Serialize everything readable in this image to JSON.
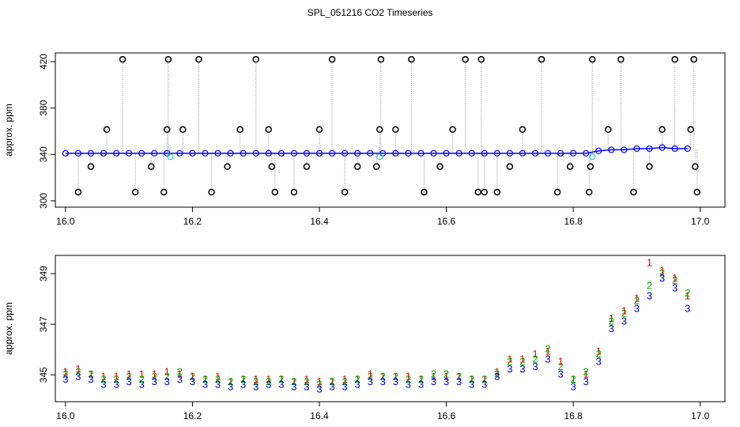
{
  "title": "SPL_051216  CO2 Timeseries",
  "chart_data": [
    {
      "type": "line",
      "ylabel": "approx. ppm",
      "xlim": [
        15.984,
        17.039
      ],
      "ylim": [
        294.5,
        427.5
      ],
      "xticks": [
        {
          "value": 16,
          "label": "16.0"
        },
        {
          "value": 16.2,
          "label": "16.2"
        },
        {
          "value": 16.4,
          "label": "16.4"
        },
        {
          "value": 16.6,
          "label": "16.6"
        },
        {
          "value": 16.8,
          "label": "16.8"
        },
        {
          "value": 17,
          "label": "17.0"
        }
      ],
      "yticks": [
        300,
        340,
        380,
        420
      ],
      "series": [
        {
          "kind": "main",
          "color": "#0000ff",
          "x": [
            16.0,
            16.02,
            16.04,
            16.06,
            16.08,
            16.1,
            16.12,
            16.14,
            16.16,
            16.18,
            16.2,
            16.22,
            16.24,
            16.26,
            16.28,
            16.3,
            16.32,
            16.34,
            16.36,
            16.38,
            16.4,
            16.42,
            16.44,
            16.46,
            16.48,
            16.5,
            16.52,
            16.54,
            16.56,
            16.58,
            16.6,
            16.62,
            16.64,
            16.66,
            16.68,
            16.7,
            16.72,
            16.74,
            16.76,
            16.78,
            16.8,
            16.82,
            16.84,
            16.86,
            16.88,
            16.9,
            16.92,
            16.94,
            16.96,
            16.98
          ],
          "values": [
            341,
            341,
            341,
            341,
            341,
            341,
            341,
            341,
            341,
            341,
            341,
            341,
            341,
            341,
            341,
            341,
            341,
            341,
            341,
            341,
            341,
            341,
            341,
            341,
            341,
            341,
            341,
            341,
            341,
            341,
            341,
            341,
            341,
            341,
            341,
            341,
            341,
            341,
            341,
            341,
            341,
            341,
            343,
            344,
            344,
            345,
            345,
            346,
            345,
            345
          ]
        },
        {
          "kind": "outlier",
          "color": "#000000",
          "x": [
            16.02,
            16.04,
            16.065,
            16.09,
            16.11,
            16.135,
            16.155,
            16.16,
            16.162,
            16.185,
            16.21,
            16.23,
            16.255,
            16.275,
            16.3,
            16.32,
            16.325,
            16.33,
            16.36,
            16.38,
            16.4,
            16.42,
            16.44,
            16.46,
            16.49,
            16.495,
            16.497,
            16.52,
            16.545,
            16.565,
            16.59,
            16.61,
            16.63,
            16.65,
            16.655,
            16.66,
            16.68,
            16.7,
            16.72,
            16.75,
            16.775,
            16.795,
            16.825,
            16.827,
            16.83,
            16.855,
            16.875,
            16.895,
            16.92,
            16.94,
            16.96,
            16.985,
            16.99,
            16.992,
            16.995
          ],
          "values": [
            307.5,
            329.5,
            361.5,
            422,
            307.5,
            329.5,
            307.5,
            361.5,
            422,
            361.5,
            422,
            307.5,
            329.5,
            361.5,
            422,
            361.5,
            329.5,
            307.5,
            307.5,
            329.5,
            361.5,
            422,
            307.5,
            329.5,
            329.5,
            361.5,
            422,
            361.5,
            422,
            307.5,
            329.5,
            361.5,
            422,
            307.5,
            422,
            307.5,
            307.5,
            329.5,
            361.5,
            422,
            307.5,
            329.5,
            307.5,
            329.5,
            422,
            361.5,
            422,
            307.5,
            329.5,
            361.5,
            422,
            361.5,
            422,
            329.5,
            307.5
          ]
        },
        {
          "kind": "flag",
          "color": "#33cccc",
          "x": [
            16.165,
            16.495,
            16.83
          ],
          "values": [
            338,
            338,
            338
          ]
        }
      ]
    },
    {
      "type": "scatter",
      "ylabel": "approx. ppm",
      "xlim": [
        15.984,
        17.039
      ],
      "ylim": [
        343.94,
        349.72
      ],
      "xticks": [
        {
          "value": 16,
          "label": "16.0"
        },
        {
          "value": 16.2,
          "label": "16.2"
        },
        {
          "value": 16.4,
          "label": "16.4"
        },
        {
          "value": 16.6,
          "label": "16.6"
        },
        {
          "value": 16.8,
          "label": "16.8"
        },
        {
          "value": 17,
          "label": "17.0"
        }
      ],
      "yticks": [
        345,
        347,
        349
      ],
      "x": [
        16.0,
        16.02,
        16.04,
        16.06,
        16.08,
        16.1,
        16.12,
        16.14,
        16.16,
        16.18,
        16.2,
        16.22,
        16.24,
        16.26,
        16.28,
        16.3,
        16.32,
        16.34,
        16.36,
        16.38,
        16.4,
        16.42,
        16.44,
        16.46,
        16.48,
        16.5,
        16.52,
        16.54,
        16.56,
        16.58,
        16.6,
        16.62,
        16.64,
        16.66,
        16.68,
        16.7,
        16.72,
        16.74,
        16.76,
        16.78,
        16.8,
        16.82,
        16.84,
        16.86,
        16.88,
        16.9,
        16.92,
        16.94,
        16.96,
        16.98
      ],
      "series": [
        {
          "marker": "1",
          "color": "#dd0000",
          "values": [
            345.1,
            345.2,
            345.0,
            344.9,
            344.9,
            345.0,
            345.0,
            345.0,
            345.1,
            345.0,
            344.9,
            344.8,
            344.9,
            344.7,
            344.8,
            344.8,
            344.8,
            344.8,
            344.7,
            344.8,
            344.7,
            344.7,
            344.8,
            344.8,
            345.0,
            344.9,
            344.9,
            344.9,
            344.8,
            344.9,
            344.9,
            344.9,
            344.8,
            344.8,
            345.1,
            345.6,
            345.6,
            345.8,
            345.9,
            345.5,
            344.8,
            345.0,
            345.9,
            347.2,
            347.5,
            348.0,
            349.4,
            349.1,
            348.8,
            348.1
          ]
        },
        {
          "marker": "2",
          "color": "#00aa00",
          "values": [
            345.0,
            345.1,
            345.0,
            344.8,
            344.8,
            344.9,
            344.8,
            344.9,
            344.9,
            345.1,
            344.9,
            344.8,
            344.8,
            344.7,
            344.8,
            344.7,
            344.7,
            344.8,
            344.7,
            344.7,
            344.6,
            344.7,
            344.7,
            344.8,
            344.9,
            344.9,
            344.9,
            344.8,
            344.8,
            345.0,
            345.0,
            344.9,
            344.8,
            344.8,
            345.0,
            345.5,
            345.5,
            345.6,
            346.0,
            345.3,
            344.8,
            345.1,
            345.8,
            347.1,
            347.4,
            347.9,
            348.5,
            349.0,
            348.7,
            348.2
          ]
        },
        {
          "marker": "3",
          "color": "#0000bb",
          "values": [
            344.8,
            344.9,
            344.8,
            344.6,
            344.6,
            344.7,
            344.6,
            344.7,
            344.7,
            344.8,
            344.7,
            344.6,
            344.6,
            344.5,
            344.6,
            344.5,
            344.6,
            344.6,
            344.5,
            344.5,
            344.4,
            344.5,
            344.5,
            344.6,
            344.7,
            344.7,
            344.7,
            344.6,
            344.6,
            344.7,
            344.7,
            344.7,
            344.6,
            344.6,
            344.9,
            345.2,
            345.2,
            345.3,
            345.6,
            345.0,
            344.5,
            344.7,
            345.5,
            346.8,
            347.1,
            347.6,
            348.1,
            348.8,
            348.4,
            347.6
          ]
        }
      ]
    }
  ]
}
